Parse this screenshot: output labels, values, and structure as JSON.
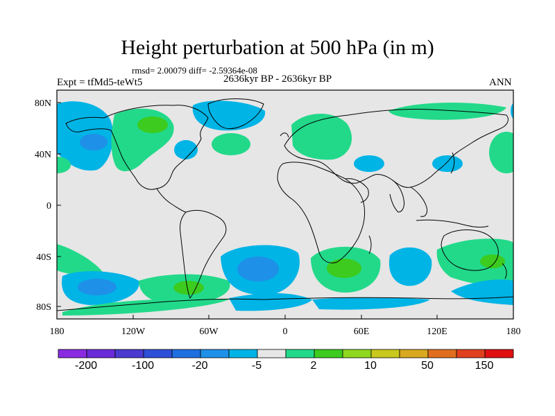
{
  "title": "Height perturbation at 500 hPa (in m)",
  "stats": "rmsd= 2.00079 diff= -2.59364e-08",
  "period": "2636kyr BP - 2636kyr BP",
  "experiment": "Expt = tfMd5-teWt5",
  "season": "ANN",
  "lat_labels": [
    "80N",
    "40N",
    "0",
    "40S",
    "80S"
  ],
  "lon_labels": [
    "180",
    "120W",
    "60W",
    "0",
    "60E",
    "120E",
    "180"
  ],
  "colorbar": {
    "colors": [
      "#8A2BE2",
      "#6A2BD8",
      "#4B3BD0",
      "#2E4FD8",
      "#1E6FE0",
      "#1E90E8",
      "#00B4E6",
      "#E6E6E6",
      "#22D98A",
      "#3CCB1E",
      "#8ED81E",
      "#C8C81E",
      "#D8A81E",
      "#E06E1E",
      "#E0401E",
      "#E01010"
    ],
    "labels": [
      "-200",
      "-100",
      "-20",
      "-5",
      "2",
      "10",
      "50",
      "150"
    ]
  },
  "colors": {
    "background": "#E6E6E6",
    "cyan": "#00B4E6",
    "blue": "#1E90E8",
    "green": "#22D98A",
    "lightgreen": "#3CCB1E"
  }
}
